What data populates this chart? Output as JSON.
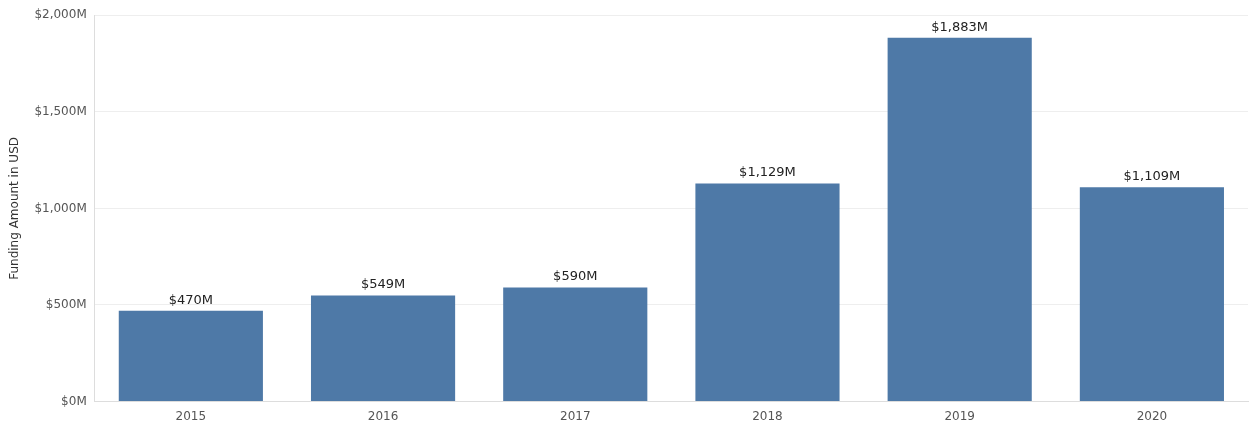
{
  "chart_data": {
    "type": "bar",
    "ylabel": "Funding Amount in USD",
    "categories": [
      "2015",
      "2016",
      "2017",
      "2018",
      "2019",
      "2020"
    ],
    "series": [
      {
        "color": "#4e79a7",
        "values": [
          470,
          549,
          590,
          1129,
          1883,
          1109
        ],
        "value_labels": [
          "$470M",
          "$549M",
          "$590M",
          "$1,129M",
          "$1,883M",
          "$1,109M"
        ]
      }
    ],
    "ylim": [
      0,
      2000
    ],
    "yticks": [
      {
        "value": 0,
        "label": "$0M"
      },
      {
        "value": 500,
        "label": "$500M"
      },
      {
        "value": 1000,
        "label": "$1,000M"
      },
      {
        "value": 1500,
        "label": "$1,500M"
      },
      {
        "value": 2000,
        "label": "$2,000M"
      }
    ],
    "grid": "y",
    "legend": false
  }
}
